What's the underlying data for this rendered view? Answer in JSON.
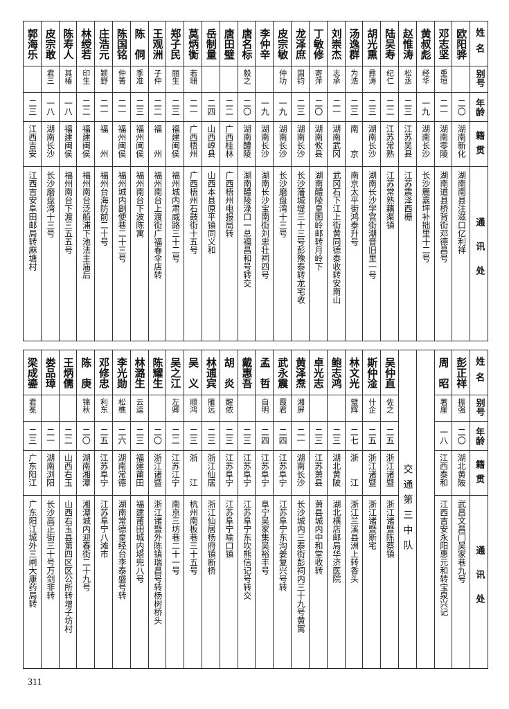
{
  "header": {
    "name": "姓名",
    "alias": "别号",
    "age": "年龄",
    "native": "籍贯",
    "address": "通讯处"
  },
  "top_table": {
    "rows": [
      {
        "name": "欧阳骅",
        "alias": "",
        "age": "二〇",
        "native": "湖南新化",
        "address": "湖南南县注滋口亿利祥"
      },
      {
        "name": "邓志坚",
        "alias": "重垣",
        "age": "二一",
        "native": "湖南零陵",
        "address": "湖南道县桥背街邓德昌号"
      },
      {
        "name": "黄叔彪",
        "alias": "经华",
        "age": "一九",
        "native": "湖南长沙",
        "address": "长沙簏嘉坪补拙里十二号"
      },
      {
        "name": "赵惟涛",
        "alias": "松丞",
        "age": "二三",
        "native": "江苏吴县",
        "address": "江苏震泽西栅"
      },
      {
        "name": "陆吴寿",
        "alias": "纪仁",
        "age": "二二",
        "native": "江苏常熟",
        "address": "江苏常熟藕渠镇"
      },
      {
        "name": "胡光熏",
        "alias": "彝涛",
        "age": "二三",
        "native": "湖南长沙",
        "address": "湖南长沙学宫街潮音旧里一号"
      },
      {
        "name": "汤逸群",
        "alias": "为浩",
        "age": "二三",
        "native": "南　　京",
        "address": "南京太平街鸿泰升号"
      },
      {
        "name": "刘崇杰",
        "alias": "志承",
        "age": "二一",
        "native": "湖南武冈",
        "address": "武冈石下江上街黄同德泰收转安南山"
      },
      {
        "name": "丁敏修",
        "alias": "寄萍",
        "age": "二〇",
        "native": "湖南攸县",
        "address": "湖南醴陵皇图岭邮转月岭下"
      },
      {
        "name": "龙泽庶",
        "alias": "国钧",
        "age": "二三",
        "native": "湖南长沙",
        "address": "长沙藩城堤三十三号彭豫泰转龙宅收"
      },
      {
        "name": "皮宗敏",
        "alias": "仲功",
        "age": "一九",
        "native": "湖南长沙",
        "address": "长沙磨盘湾十三号"
      },
      {
        "name": "李仲辛",
        "alias": "",
        "age": "一九",
        "native": "湖南长沙",
        "address": "湖南长沙宝南街刘忠壮祠四号"
      },
      {
        "name": "唐名标",
        "alias": "毅之",
        "age": "二〇",
        "native": "湖南醴陵",
        "address": "湖南醴陵渌口一总福昌和号转交"
      },
      {
        "name": "唐田璧",
        "alias": "",
        "age": "二二",
        "native": "广西桂林",
        "address": "广西梧州电报局转"
      },
      {
        "name": "岳制量",
        "alias": "",
        "age": "二四",
        "native": "山西崞县",
        "address": "山西本县原平镇同义和"
      },
      {
        "name": "莫炳衡",
        "alias": "若珊",
        "age": "二一",
        "native": "广西梧州",
        "address": "广西梧州石鼓街十五号"
      },
      {
        "name": "郑子民",
        "alias": "丽生",
        "age": "二三",
        "native": "福建闽侯",
        "address": "福州城内肃威路三十二号"
      },
      {
        "name": "王观洲",
        "alias": "子仲",
        "age": "二二",
        "native": "福　　州",
        "address": "福州南台上渡街广福春伞店转"
      },
      {
        "name": "陈　侗",
        "alias": "季准",
        "age": "二三",
        "native": "福州闽侯",
        "address": "福州南台下波陈寓"
      },
      {
        "name": "陈国铭",
        "alias": "仲菁",
        "age": "二一",
        "native": "福州闽侯",
        "address": "福州城内副使巷二十三号"
      },
      {
        "name": "庄浩元",
        "alias": "颖野",
        "age": "二一",
        "native": "福　　州",
        "address": "福州台海防前二十号"
      },
      {
        "name": "林绶若",
        "alias": "印生",
        "age": "二二",
        "native": "福建闽侯",
        "address": "福州南台泛船浦下池法主庙后"
      },
      {
        "name": "陈寿人",
        "alias": "其椿",
        "age": "一八",
        "native": "福建闽侯",
        "address": "福州南台下渡三五五号"
      },
      {
        "name": "皮宗敢",
        "alias": "君三",
        "age": "一八",
        "native": "湖南长沙",
        "address": "长沙磨盘湾十三号"
      },
      {
        "name": "郭海乐",
        "alias": "",
        "age": "二三",
        "native": "江西吉安",
        "address": "江西吉安阜田邮局转麻塘村"
      }
    ]
  },
  "bottom_table": {
    "rows_before": [
      {
        "name": "彭正祥",
        "alias": "振强",
        "age": "二〇",
        "native": "湖北黄陂",
        "address": "武昌文昌门吴家巷九号"
      },
      {
        "name": "周　昭",
        "alias": "著崖",
        "age": "一八",
        "native": "江西泰和",
        "address": "江西吉安永阳惠元和转宝泉兴记"
      }
    ],
    "section_label": "交通第三中队",
    "rows_after": [
      {
        "name": "吴仲直",
        "alias": "佐之",
        "age": "二五",
        "native": "浙江诸暨",
        "address": "浙江诸暨陈蔡镇"
      },
      {
        "name": "斯仲淦",
        "alias": "什企",
        "age": "二五",
        "native": "浙江诸暨",
        "address": "浙江诸暨斯宅"
      },
      {
        "name": "林文光",
        "alias": "璧辉",
        "age": "二七",
        "native": "浙　　江",
        "address": "浙江兰溪县洲上转香头"
      },
      {
        "name": "鲍志鸿",
        "alias": "",
        "age": "二三",
        "native": "湖北黄陂",
        "address": "湖北横店邮局华济医院"
      },
      {
        "name": "卓光志",
        "alias": "",
        "age": "二三",
        "native": "江苏萧县",
        "address": "萧县城内中和堂收转"
      },
      {
        "name": "黄泽焘",
        "alias": "湘屏",
        "age": "二一",
        "native": "湖南长沙",
        "address": "长沙城内三泰街彭祠内三十九号黄寓"
      },
      {
        "name": "武永震",
        "alias": "霞君",
        "age": "二四",
        "native": "江苏阜宁",
        "address": "江苏阜宁东沟姜复兴号转"
      },
      {
        "name": "孟　哲",
        "alias": "自明",
        "age": "二四",
        "native": "江苏阜宁",
        "address": "阜宁吴家集吴裕丰号"
      },
      {
        "name": "戴惠吾",
        "alias": "",
        "age": "二三",
        "native": "江苏阜宁",
        "address": "江苏阜宁东坎熊信记号转交"
      },
      {
        "name": "胡　炎",
        "alias": "醒侬",
        "age": "二三",
        "native": "江苏阜宁",
        "address": "江苏阜宁喻口镇"
      },
      {
        "name": "林逋宾",
        "alias": "雁远",
        "age": "二三",
        "native": "浙江仙居",
        "address": "浙江仙居杨府镇断桥"
      },
      {
        "name": "吴　义",
        "alias": "顺鸿",
        "age": "二三",
        "native": "浙　　江",
        "address": "杭州南板巷三十五号"
      },
      {
        "name": "吴之江",
        "alias": "左卿",
        "age": "二二",
        "native": "江苏江宁",
        "address": "南京三坊巷二十一号"
      },
      {
        "name": "陈耀生",
        "alias": "",
        "age": "二〇",
        "native": "浙江诸暨",
        "address": "浙江诸暨外陈镇瑞昌号转杨树桥头"
      },
      {
        "name": "林潞生",
        "alias": "云逵",
        "age": "二三",
        "native": "福建莆田",
        "address": "福建莆田城内塔兜八号"
      },
      {
        "name": "李光勋",
        "alias": "松樵",
        "age": "二六",
        "native": "湖南常德",
        "address": "湖南常德皇经台李泰盛号转"
      },
      {
        "name": "邓修忠",
        "alias": "利东",
        "age": "二五",
        "native": "江苏阜宁",
        "address": "江苏阜宁八滩市"
      },
      {
        "name": "陈　庚",
        "alias": "锦秋",
        "age": "二〇",
        "native": "湖南湘潭",
        "address": "湘潭城内迎春街二十九号"
      },
      {
        "name": "王炳儒",
        "alias": "",
        "age": "二二",
        "native": "山西右玉",
        "address": "山西右玉县第四区区公所转增子坊村"
      },
      {
        "name": "娄品璋",
        "alias": "",
        "age": "二一",
        "native": "湖南浏阳",
        "address": "长沙高正街三十号万剑非转"
      },
      {
        "name": "梁成鎏",
        "alias": "君冕",
        "age": "二三",
        "native": "广东阳江",
        "address": "广东阳江城外三闸大康药局转"
      }
    ]
  },
  "page_number": "311"
}
